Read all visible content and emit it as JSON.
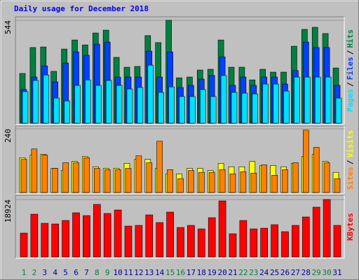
{
  "chart_data": {
    "type": "bar",
    "title": "Daily usage for December 2018",
    "title_color": "#0000ff",
    "categories": [
      "1",
      "2",
      "3",
      "4",
      "5",
      "6",
      "7",
      "8",
      "9",
      "10",
      "11",
      "12",
      "13",
      "14",
      "15",
      "16",
      "17",
      "18",
      "19",
      "20",
      "21",
      "22",
      "23",
      "24",
      "25",
      "26",
      "27",
      "28",
      "29",
      "30",
      "31"
    ],
    "category_colors": [
      "#008040",
      "#008040",
      "#0000a0",
      "#0000a0",
      "#0000a0",
      "#0000a0",
      "#0000a0",
      "#008040",
      "#008040",
      "#0000a0",
      "#0000a0",
      "#0000a0",
      "#0000a0",
      "#0000a0",
      "#008040",
      "#008040",
      "#0000a0",
      "#0000a0",
      "#0000a0",
      "#0000a0",
      "#0000a0",
      "#008040",
      "#008040",
      "#0000a0",
      "#0000a0",
      "#0000a0",
      "#0000a0",
      "#0000a0",
      "#008040",
      "#008040",
      "#0000a0"
    ],
    "legend_separator": "/",
    "panels": [
      {
        "ylim": [
          0,
          544
        ],
        "yticks": [
          544
        ],
        "legend_order": [
          2,
          1,
          0
        ],
        "series": [
          {
            "name": "Hits",
            "color": "#008040",
            "values": [
              263,
              400,
              403,
              274,
              392,
              440,
              414,
              477,
              492,
              348,
              296,
              300,
              463,
              426,
              544,
              240,
              244,
              281,
              285,
              440,
              296,
              296,
              229,
              285,
              270,
              270,
              407,
              496,
              507,
              474,
              292
            ]
          },
          {
            "name": "Files",
            "color": "#0040ff",
            "values": [
              178,
              244,
              303,
              218,
              318,
              377,
              359,
              418,
              429,
              244,
              244,
              244,
              381,
              244,
              377,
              189,
              200,
              233,
              252,
              351,
              200,
              244,
              200,
              244,
              244,
              207,
              278,
              429,
              400,
              400,
              200
            ]
          },
          {
            "name": "Pages",
            "color": "#00e0ff",
            "values": [
              167,
              226,
              255,
              133,
              118,
              200,
              229,
              200,
              226,
              200,
              181,
              189,
              307,
              163,
              192,
              141,
              141,
              178,
              141,
              252,
              163,
              159,
              155,
              207,
              207,
              170,
              244,
              244,
              244,
              244,
              133
            ]
          }
        ]
      },
      {
        "ylim": [
          0,
          240
        ],
        "yticks": [
          240
        ],
        "legend_order": [
          1,
          0
        ],
        "series": [
          {
            "name": "Visits",
            "color": "#ffff00",
            "values": [
              131,
              141,
              144,
              91,
              83,
              117,
              136,
              97,
              91,
              91,
              110,
              125,
              125,
              91,
              70,
              70,
              91,
              91,
              83,
              110,
              97,
              97,
              117,
              102,
              102,
              97,
              110,
              136,
              144,
              117,
              76
            ]
          },
          {
            "name": "Sites",
            "color": "#ff8000",
            "values": [
              125,
              164,
              141,
              91,
              112,
              112,
              131,
              91,
              86,
              86,
              91,
              138,
              112,
              193,
              86,
              52,
              83,
              76,
              76,
              86,
              70,
              78,
              73,
              104,
              65,
              86,
              112,
              235,
              170,
              112,
              52
            ]
          }
        ]
      },
      {
        "ylim": [
          0,
          18924
        ],
        "yticks": [
          18924
        ],
        "legend_order": [
          0
        ],
        "series": [
          {
            "name": "KBytes",
            "color": "#ff0000",
            "values": [
              7847,
              14079,
              11079,
              10848,
              12002,
              14540,
              13617,
              17309,
              14310,
              15464,
              10156,
              10387,
              13848,
              11310,
              14771,
              9694,
              10387,
              9233,
              12925,
              18463,
              7616,
              12002,
              9233,
              9464,
              10618,
              8309,
              10387,
              13156,
              16387,
              18924,
              10387
            ]
          }
        ]
      }
    ]
  }
}
